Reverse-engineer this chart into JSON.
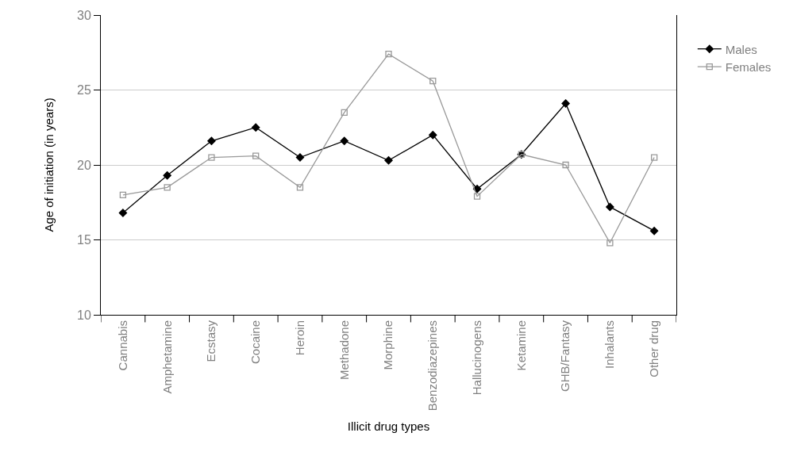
{
  "chart_data": {
    "type": "line",
    "xlabel": "Illicit drug types",
    "ylabel": "Age of initiation (in years)",
    "categories": [
      "Cannabis",
      "Amphetamine",
      "Ecstasy",
      "Cocaine",
      "Heroin",
      "Methadone",
      "Morphine",
      "Benzodiazepines",
      "Hallucinogens",
      "Ketamine",
      "GHB/Fantasy",
      "Inhalants",
      "Other drug"
    ],
    "series": [
      {
        "name": "Males",
        "color": "#000000",
        "marker": "diamond",
        "values": [
          16.8,
          19.3,
          21.6,
          22.5,
          20.5,
          21.6,
          20.3,
          22.0,
          18.4,
          20.7,
          24.1,
          17.2,
          15.6
        ]
      },
      {
        "name": "Females",
        "color": "#999999",
        "marker": "square",
        "values": [
          18.0,
          18.5,
          20.5,
          20.6,
          18.5,
          23.5,
          27.4,
          25.6,
          17.9,
          20.7,
          20.0,
          14.8,
          20.5
        ]
      }
    ],
    "ylim": [
      10,
      30
    ],
    "yticks": [
      10,
      15,
      20,
      25,
      30
    ],
    "grid": "y",
    "legend": "right",
    "line_style": "solid"
  }
}
